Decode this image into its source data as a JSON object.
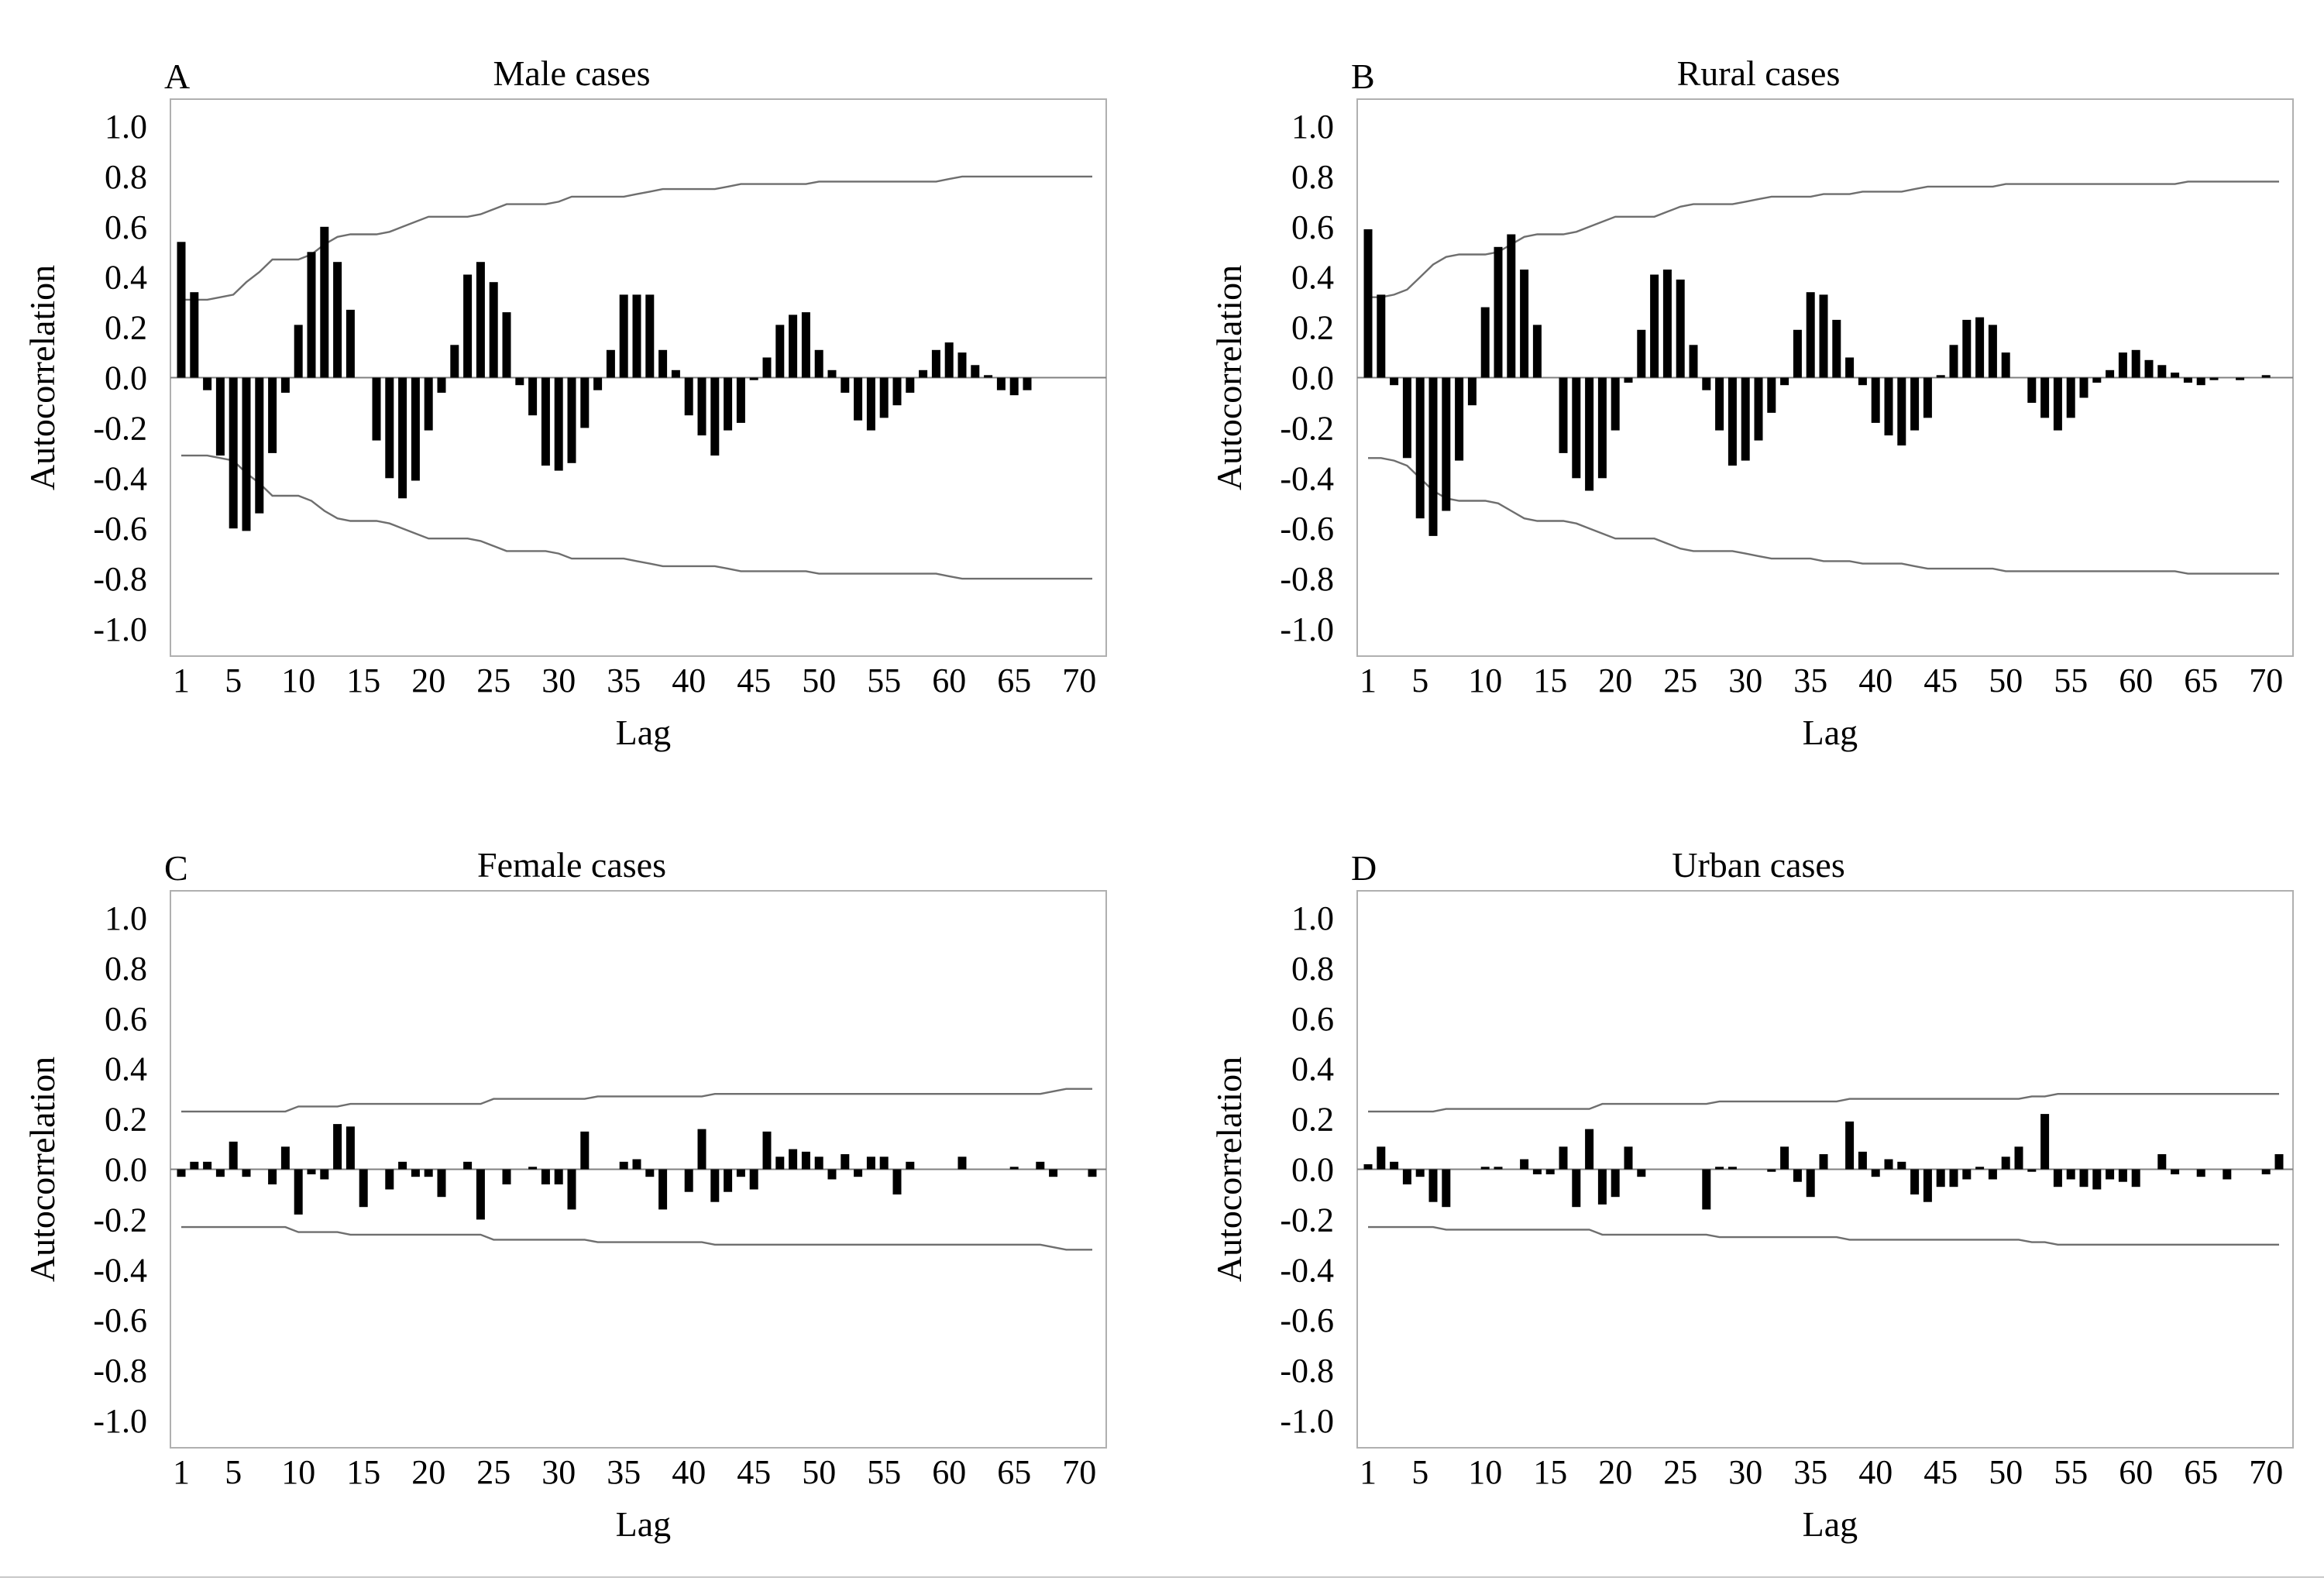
{
  "chart_data": [
    {
      "type": "bar",
      "panel_letter": "A",
      "title": "Male cases",
      "xlabel": "Lag",
      "ylabel": "Autocorrelation",
      "xlim": [
        1,
        71
      ],
      "ylim": [
        -1.0,
        1.0
      ],
      "x_ticks": [
        1,
        5,
        10,
        15,
        20,
        25,
        30,
        35,
        40,
        45,
        50,
        55,
        60,
        65,
        70
      ],
      "y_ticks": [
        "1.0",
        "0.8",
        "0.6",
        "0.4",
        "0.2",
        "0.0",
        "-0.2",
        "-0.4",
        "-0.6",
        "-0.8",
        "-1.0"
      ],
      "grid": false,
      "lags": [
        1,
        2,
        3,
        4,
        5,
        6,
        7,
        8,
        9,
        10,
        11,
        12,
        13,
        14,
        15,
        16,
        17,
        18,
        19,
        20,
        21,
        22,
        23,
        24,
        25,
        26,
        27,
        28,
        29,
        30,
        31,
        32,
        33,
        34,
        35,
        36,
        37,
        38,
        39,
        40,
        41,
        42,
        43,
        44,
        45,
        46,
        47,
        48,
        49,
        50,
        51,
        52,
        53,
        54,
        55,
        56,
        57,
        58,
        59,
        60,
        61,
        62,
        63,
        64,
        65,
        66,
        67,
        68,
        69,
        70,
        71
      ],
      "values": [
        0.54,
        0.34,
        -0.05,
        -0.31,
        -0.6,
        -0.61,
        -0.54,
        -0.3,
        -0.06,
        0.21,
        0.5,
        0.6,
        0.46,
        0.27,
        0,
        -0.25,
        -0.4,
        -0.48,
        -0.41,
        -0.21,
        -0.06,
        0.13,
        0.41,
        0.46,
        0.38,
        0.26,
        -0.03,
        -0.15,
        -0.35,
        -0.37,
        -0.34,
        -0.2,
        -0.05,
        0.11,
        0.33,
        0.33,
        0.33,
        0.11,
        0.03,
        -0.15,
        -0.23,
        -0.31,
        -0.21,
        -0.18,
        -0.01,
        0.08,
        0.21,
        0.25,
        0.26,
        0.11,
        0.03,
        -0.06,
        -0.17,
        -0.21,
        -0.16,
        -0.11,
        -0.06,
        0.03,
        0.11,
        0.14,
        0.1,
        0.05,
        0.01,
        -0.05,
        -0.07,
        -0.05,
        0,
        0,
        0,
        0,
        0
      ],
      "confidence_limit": [
        0.31,
        0.31,
        0.31,
        0.32,
        0.33,
        0.38,
        0.42,
        0.47,
        0.47,
        0.47,
        0.49,
        0.53,
        0.56,
        0.57,
        0.57,
        0.57,
        0.58,
        0.6,
        0.62,
        0.64,
        0.64,
        0.64,
        0.64,
        0.65,
        0.67,
        0.69,
        0.69,
        0.69,
        0.69,
        0.7,
        0.72,
        0.72,
        0.72,
        0.72,
        0.72,
        0.73,
        0.74,
        0.75,
        0.75,
        0.75,
        0.75,
        0.75,
        0.76,
        0.77,
        0.77,
        0.77,
        0.77,
        0.77,
        0.77,
        0.78,
        0.78,
        0.78,
        0.78,
        0.78,
        0.78,
        0.78,
        0.78,
        0.78,
        0.78,
        0.79,
        0.8,
        0.8,
        0.8,
        0.8,
        0.8,
        0.8,
        0.8,
        0.8,
        0.8,
        0.8,
        0.8
      ]
    },
    {
      "type": "bar",
      "panel_letter": "B",
      "title": "Rural cases",
      "xlabel": "Lag",
      "ylabel": "Autocorrelation",
      "xlim": [
        1,
        71
      ],
      "ylim": [
        -1.0,
        1.0
      ],
      "x_ticks": [
        1,
        5,
        10,
        15,
        20,
        25,
        30,
        35,
        40,
        45,
        50,
        55,
        60,
        65,
        70
      ],
      "y_ticks": [
        "1.0",
        "0.8",
        "0.6",
        "0.4",
        "0.2",
        "0.0",
        "-0.2",
        "-0.4",
        "-0.6",
        "-0.8",
        "-1.0"
      ],
      "grid": false,
      "lags": [
        1,
        2,
        3,
        4,
        5,
        6,
        7,
        8,
        9,
        10,
        11,
        12,
        13,
        14,
        15,
        16,
        17,
        18,
        19,
        20,
        21,
        22,
        23,
        24,
        25,
        26,
        27,
        28,
        29,
        30,
        31,
        32,
        33,
        34,
        35,
        36,
        37,
        38,
        39,
        40,
        41,
        42,
        43,
        44,
        45,
        46,
        47,
        48,
        49,
        50,
        51,
        52,
        53,
        54,
        55,
        56,
        57,
        58,
        59,
        60,
        61,
        62,
        63,
        64,
        65,
        66,
        67,
        68,
        69,
        70,
        71
      ],
      "values": [
        0.59,
        0.33,
        -0.03,
        -0.32,
        -0.56,
        -0.63,
        -0.53,
        -0.33,
        -0.11,
        0.28,
        0.52,
        0.57,
        0.43,
        0.21,
        0,
        -0.3,
        -0.4,
        -0.45,
        -0.4,
        -0.21,
        -0.02,
        0.19,
        0.41,
        0.43,
        0.39,
        0.13,
        -0.05,
        -0.21,
        -0.35,
        -0.33,
        -0.25,
        -0.14,
        -0.03,
        0.19,
        0.34,
        0.33,
        0.23,
        0.08,
        -0.03,
        -0.18,
        -0.23,
        -0.27,
        -0.21,
        -0.16,
        0.01,
        0.13,
        0.23,
        0.24,
        0.21,
        0.1,
        0,
        -0.1,
        -0.16,
        -0.21,
        -0.16,
        -0.08,
        -0.02,
        0.03,
        0.1,
        0.11,
        0.07,
        0.05,
        0.02,
        -0.02,
        -0.03,
        -0.01,
        0,
        -0.01,
        0,
        0.01,
        0
      ],
      "confidence_limit": [
        0.32,
        0.32,
        0.33,
        0.35,
        0.4,
        0.45,
        0.48,
        0.49,
        0.49,
        0.49,
        0.5,
        0.53,
        0.56,
        0.57,
        0.57,
        0.57,
        0.58,
        0.6,
        0.62,
        0.64,
        0.64,
        0.64,
        0.64,
        0.66,
        0.68,
        0.69,
        0.69,
        0.69,
        0.69,
        0.7,
        0.71,
        0.72,
        0.72,
        0.72,
        0.72,
        0.73,
        0.73,
        0.73,
        0.74,
        0.74,
        0.74,
        0.74,
        0.75,
        0.76,
        0.76,
        0.76,
        0.76,
        0.76,
        0.76,
        0.77,
        0.77,
        0.77,
        0.77,
        0.77,
        0.77,
        0.77,
        0.77,
        0.77,
        0.77,
        0.77,
        0.77,
        0.77,
        0.77,
        0.78,
        0.78,
        0.78,
        0.78,
        0.78,
        0.78,
        0.78,
        0.78
      ]
    },
    {
      "type": "bar",
      "panel_letter": "C",
      "title": "Female cases",
      "xlabel": "Lag",
      "ylabel": "Autocorrelation",
      "xlim": [
        1,
        71
      ],
      "ylim": [
        -1.0,
        1.0
      ],
      "x_ticks": [
        1,
        5,
        10,
        15,
        20,
        25,
        30,
        35,
        40,
        45,
        50,
        55,
        60,
        65,
        70
      ],
      "y_ticks": [
        "1.0",
        "0.8",
        "0.6",
        "0.4",
        "0.2",
        "0.0",
        "-0.2",
        "-0.4",
        "-0.6",
        "-0.8",
        "-1.0"
      ],
      "grid": false,
      "lags": [
        1,
        2,
        3,
        4,
        5,
        6,
        7,
        8,
        9,
        10,
        11,
        12,
        13,
        14,
        15,
        16,
        17,
        18,
        19,
        20,
        21,
        22,
        23,
        24,
        25,
        26,
        27,
        28,
        29,
        30,
        31,
        32,
        33,
        34,
        35,
        36,
        37,
        38,
        39,
        40,
        41,
        42,
        43,
        44,
        45,
        46,
        47,
        48,
        49,
        50,
        51,
        52,
        53,
        54,
        55,
        56,
        57,
        58,
        59,
        60,
        61,
        62,
        63,
        64,
        65,
        66,
        67,
        68,
        69,
        70,
        71
      ],
      "values": [
        -0.03,
        0.03,
        0.03,
        -0.03,
        0.11,
        -0.03,
        0,
        -0.06,
        0.09,
        -0.18,
        -0.02,
        -0.04,
        0.18,
        0.17,
        -0.15,
        0,
        -0.08,
        0.03,
        -0.03,
        -0.03,
        -0.11,
        0,
        0.03,
        -0.2,
        0,
        -0.06,
        0,
        0.01,
        -0.06,
        -0.06,
        -0.16,
        0.15,
        0,
        0,
        0.03,
        0.04,
        -0.03,
        -0.16,
        0,
        -0.09,
        0.16,
        -0.13,
        -0.09,
        -0.03,
        -0.08,
        0.15,
        0.05,
        0.08,
        0.07,
        0.05,
        -0.04,
        0.06,
        -0.03,
        0.05,
        0.05,
        -0.1,
        0.03,
        0,
        0,
        0,
        0.05,
        0,
        0,
        0,
        0.01,
        0,
        0.03,
        -0.03,
        0,
        0,
        -0.03
      ],
      "confidence_limit": [
        0.23,
        0.23,
        0.23,
        0.23,
        0.23,
        0.23,
        0.23,
        0.23,
        0.23,
        0.25,
        0.25,
        0.25,
        0.25,
        0.26,
        0.26,
        0.26,
        0.26,
        0.26,
        0.26,
        0.26,
        0.26,
        0.26,
        0.26,
        0.26,
        0.28,
        0.28,
        0.28,
        0.28,
        0.28,
        0.28,
        0.28,
        0.28,
        0.29,
        0.29,
        0.29,
        0.29,
        0.29,
        0.29,
        0.29,
        0.29,
        0.29,
        0.3,
        0.3,
        0.3,
        0.3,
        0.3,
        0.3,
        0.3,
        0.3,
        0.3,
        0.3,
        0.3,
        0.3,
        0.3,
        0.3,
        0.3,
        0.3,
        0.3,
        0.3,
        0.3,
        0.3,
        0.3,
        0.3,
        0.3,
        0.3,
        0.3,
        0.3,
        0.31,
        0.32,
        0.32,
        0.32
      ]
    },
    {
      "type": "bar",
      "panel_letter": "D",
      "title": "Urban cases",
      "xlabel": "Lag",
      "ylabel": "Autocorrelation",
      "xlim": [
        1,
        71
      ],
      "ylim": [
        -1.0,
        1.0
      ],
      "x_ticks": [
        1,
        5,
        10,
        15,
        20,
        25,
        30,
        35,
        40,
        45,
        50,
        55,
        60,
        65,
        70
      ],
      "y_ticks": [
        "1.0",
        "0.8",
        "0.6",
        "0.4",
        "0.2",
        "0.0",
        "-0.2",
        "-0.4",
        "-0.6",
        "-0.8",
        "-1.0"
      ],
      "grid": false,
      "lags": [
        1,
        2,
        3,
        4,
        5,
        6,
        7,
        8,
        9,
        10,
        11,
        12,
        13,
        14,
        15,
        16,
        17,
        18,
        19,
        20,
        21,
        22,
        23,
        24,
        25,
        26,
        27,
        28,
        29,
        30,
        31,
        32,
        33,
        34,
        35,
        36,
        37,
        38,
        39,
        40,
        41,
        42,
        43,
        44,
        45,
        46,
        47,
        48,
        49,
        50,
        51,
        52,
        53,
        54,
        55,
        56,
        57,
        58,
        59,
        60,
        61,
        62,
        63,
        64,
        65,
        66,
        67,
        68,
        69,
        70,
        71
      ],
      "values": [
        0.02,
        0.09,
        0.03,
        -0.06,
        -0.03,
        -0.13,
        -0.15,
        0,
        0,
        0.01,
        0.01,
        0,
        0.04,
        -0.02,
        -0.02,
        0.09,
        -0.15,
        0.16,
        -0.14,
        -0.11,
        0.09,
        -0.03,
        0,
        0,
        0,
        0,
        -0.16,
        0.01,
        0.01,
        0,
        0,
        -0.01,
        0.09,
        -0.05,
        -0.11,
        0.06,
        0,
        0.19,
        0.07,
        -0.03,
        0.04,
        0.03,
        -0.1,
        -0.13,
        -0.07,
        -0.07,
        -0.04,
        0.01,
        -0.04,
        0.05,
        0.09,
        -0.01,
        0.22,
        -0.07,
        -0.04,
        -0.07,
        -0.08,
        -0.04,
        -0.05,
        -0.07,
        0,
        0.06,
        -0.02,
        0,
        -0.03,
        0,
        -0.04,
        0,
        0,
        -0.02,
        0.06
      ],
      "confidence_limit": [
        0.23,
        0.23,
        0.23,
        0.23,
        0.23,
        0.23,
        0.24,
        0.24,
        0.24,
        0.24,
        0.24,
        0.24,
        0.24,
        0.24,
        0.24,
        0.24,
        0.24,
        0.24,
        0.26,
        0.26,
        0.26,
        0.26,
        0.26,
        0.26,
        0.26,
        0.26,
        0.26,
        0.27,
        0.27,
        0.27,
        0.27,
        0.27,
        0.27,
        0.27,
        0.27,
        0.27,
        0.27,
        0.28,
        0.28,
        0.28,
        0.28,
        0.28,
        0.28,
        0.28,
        0.28,
        0.28,
        0.28,
        0.28,
        0.28,
        0.28,
        0.28,
        0.29,
        0.29,
        0.3,
        0.3,
        0.3,
        0.3,
        0.3,
        0.3,
        0.3,
        0.3,
        0.3,
        0.3,
        0.3,
        0.3,
        0.3,
        0.3,
        0.3,
        0.3,
        0.3,
        0.3
      ]
    }
  ]
}
